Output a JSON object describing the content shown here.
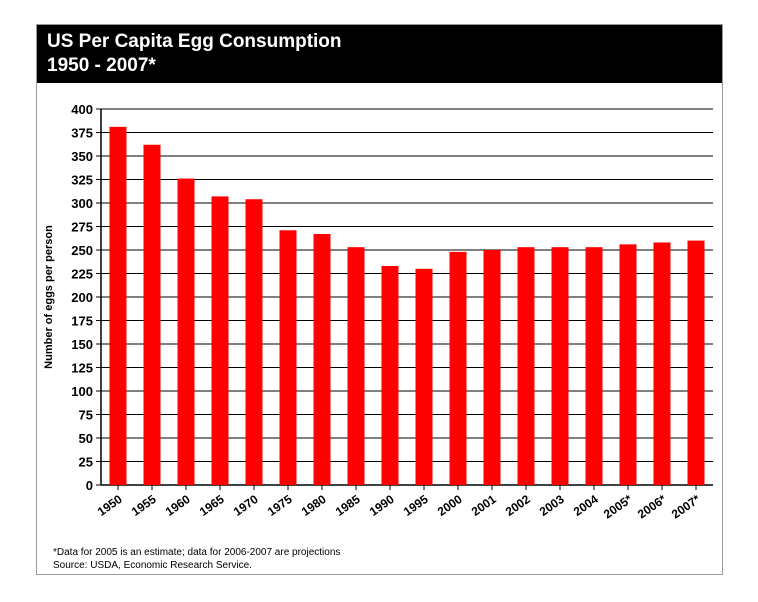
{
  "title": "US Per Capita Egg Consumption",
  "subtitle": "1950 - 2007*",
  "footnote": "*Data for 2005 is an estimate; data for 2006-2007 are projections",
  "source": "Source: USDA, Economic Research Service.",
  "colors": {
    "bar": "#ff0000",
    "title_bg": "#000000",
    "title_text": "#ffffff",
    "grid": "#000000"
  },
  "chart_data": {
    "type": "bar",
    "title": "US Per Capita Egg Consumption",
    "subtitle": "1950 - 2007*",
    "xlabel": "",
    "ylabel": "Number of eggs per person",
    "ylim": [
      0,
      400
    ],
    "yticks": [
      0,
      25,
      50,
      75,
      100,
      125,
      150,
      175,
      200,
      225,
      250,
      275,
      300,
      325,
      350,
      375,
      400
    ],
    "grid": true,
    "categories": [
      "1950",
      "1955",
      "1960",
      "1965",
      "1970",
      "1975",
      "1980",
      "1985",
      "1990",
      "1995",
      "2000",
      "2001",
      "2002",
      "2003",
      "2004",
      "2005*",
      "2006*",
      "2007*"
    ],
    "values": [
      381,
      362,
      326,
      307,
      304,
      271,
      267,
      253,
      233,
      230,
      248,
      250,
      253,
      253,
      253,
      256,
      258,
      260
    ]
  }
}
